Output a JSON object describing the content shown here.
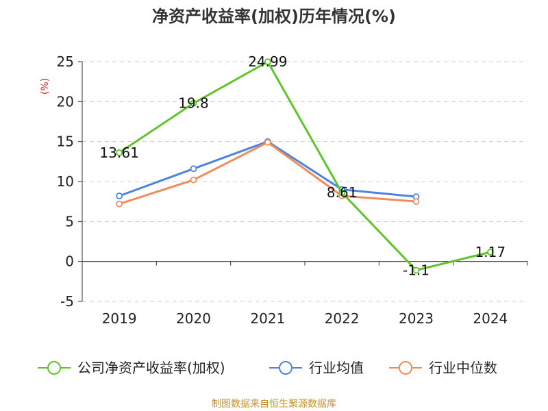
{
  "chart_data": {
    "type": "line",
    "title": "净资产收益率(加权)历年情况(%)",
    "ylabel": "(%)",
    "categories": [
      "2019",
      "2020",
      "2021",
      "2022",
      "2023",
      "2024"
    ],
    "ylim": [
      -5,
      25
    ],
    "yticks": [
      -5,
      0,
      5,
      10,
      15,
      20,
      25
    ],
    "grid": true,
    "legend_position": "bottom",
    "series": [
      {
        "name": "公司净资产收益率(加权)",
        "color": "#5ec428",
        "values": [
          13.61,
          19.8,
          24.99,
          8.61,
          -1.1,
          1.17
        ],
        "labels": [
          "13.61",
          "19.8",
          "24.99",
          "8.61",
          "-1.1",
          "1.17"
        ]
      },
      {
        "name": "行业均值",
        "color": "#4c84e0",
        "values": [
          8.2,
          11.6,
          15.0,
          9.0,
          8.1,
          null
        ]
      },
      {
        "name": "行业中位数",
        "color": "#f08c5a",
        "values": [
          7.2,
          10.2,
          14.9,
          8.2,
          7.5,
          null
        ]
      }
    ],
    "source": "制图数据来自恒生聚源数据库"
  }
}
